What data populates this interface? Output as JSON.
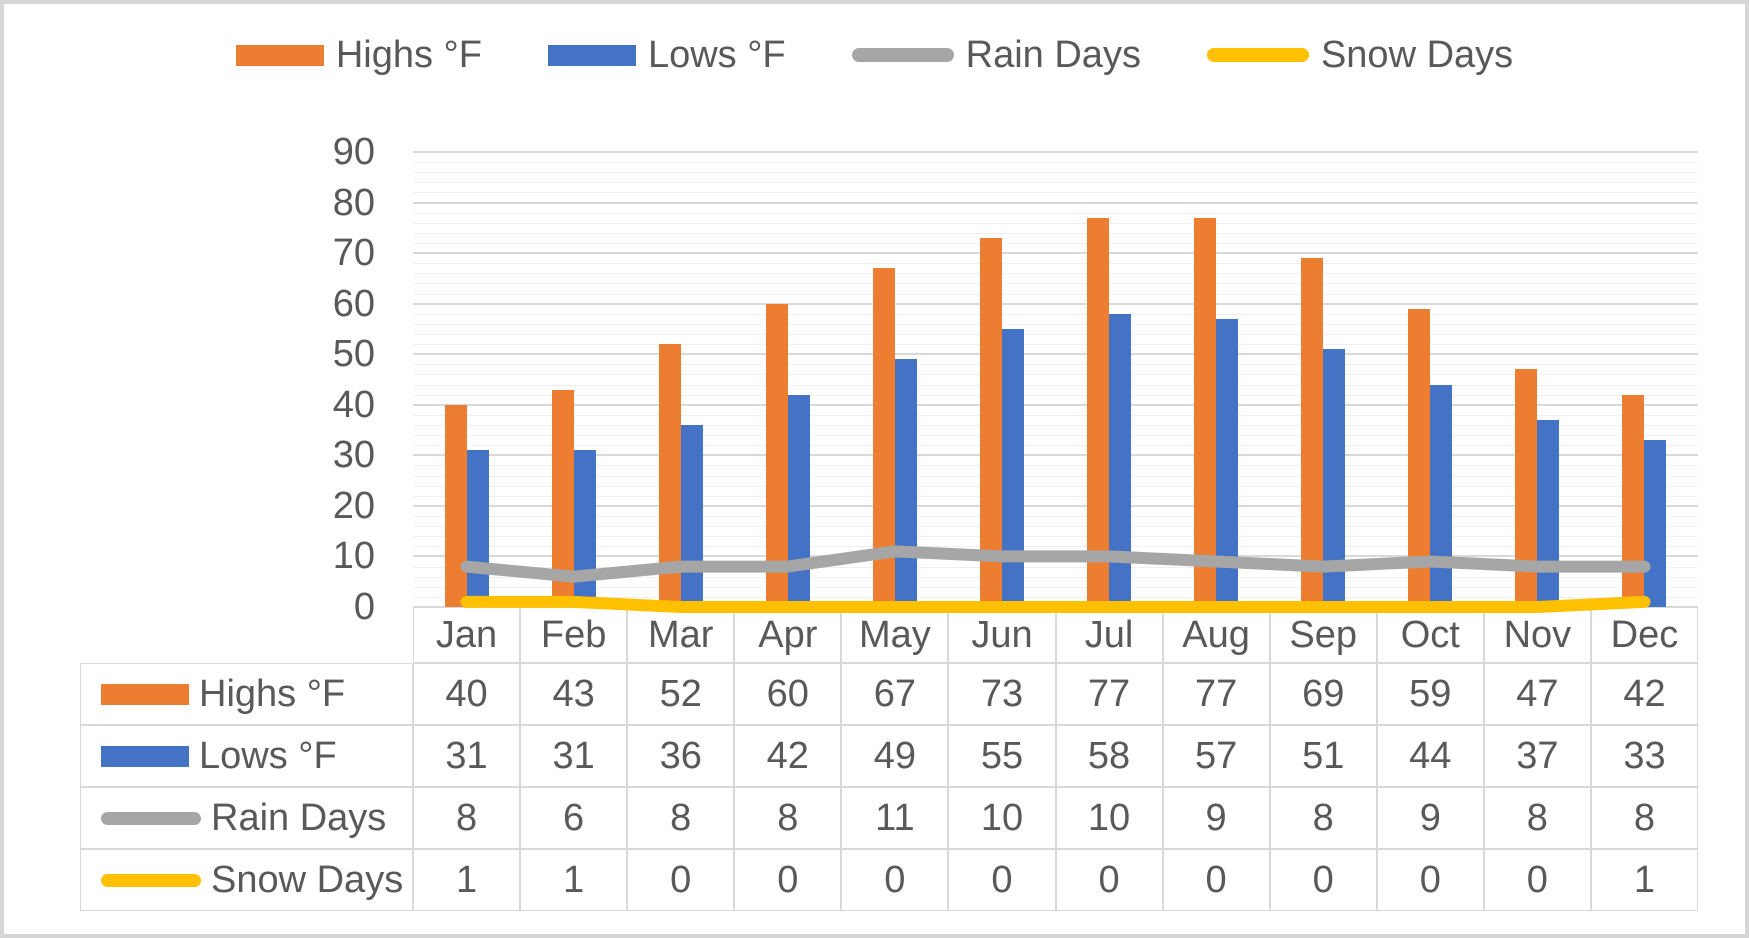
{
  "chart_data": {
    "type": "combo",
    "categories": [
      "Jan",
      "Feb",
      "Mar",
      "Apr",
      "May",
      "Jun",
      "Jul",
      "Aug",
      "Sep",
      "Oct",
      "Nov",
      "Dec"
    ],
    "series": [
      {
        "key": "highs",
        "name": "Highs °F",
        "type": "bar",
        "color": "#ED7D31",
        "values": [
          40,
          43,
          52,
          60,
          67,
          73,
          77,
          77,
          69,
          59,
          47,
          42
        ]
      },
      {
        "key": "lows",
        "name": "Lows °F",
        "type": "bar",
        "color": "#4472C4",
        "values": [
          31,
          31,
          36,
          42,
          49,
          55,
          58,
          57,
          51,
          44,
          37,
          33
        ]
      },
      {
        "key": "rain",
        "name": "Rain Days",
        "type": "line",
        "color": "#A6A6A6",
        "values": [
          8,
          6,
          8,
          8,
          11,
          10,
          10,
          9,
          8,
          9,
          8,
          8
        ]
      },
      {
        "key": "snow",
        "name": "Snow Days",
        "type": "line",
        "color": "#FFC000",
        "values": [
          1,
          1,
          0,
          0,
          0,
          0,
          0,
          0,
          0,
          0,
          0,
          1
        ]
      }
    ],
    "ylim": [
      0,
      90
    ],
    "y_ticks": [
      0,
      10,
      20,
      30,
      40,
      50,
      60,
      70,
      80,
      90
    ],
    "y_minor_step": 2,
    "grid": true,
    "legend_position": "top",
    "data_table_shown": true,
    "colors": {
      "text": "#595959",
      "grid_major": "#D9D9D9",
      "grid_minor": "#F0F0F0",
      "table_border": "#D9D9D9",
      "frame_border": "#D6D6D6"
    }
  }
}
